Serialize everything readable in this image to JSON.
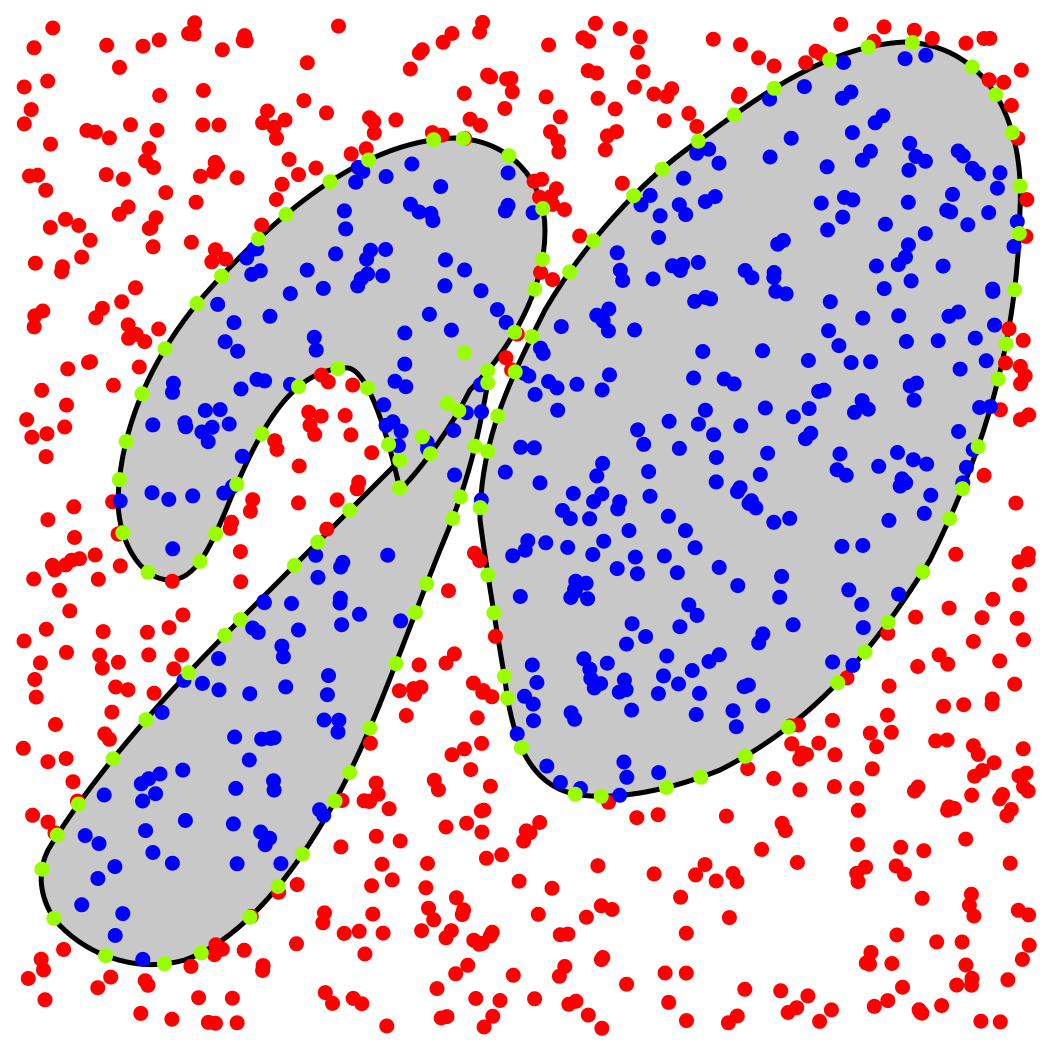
{
  "colors": {
    "background": "#ffffff",
    "region_fill": "#c8c8c8",
    "region_stroke": "#000000",
    "outside_point": "#ff0000",
    "inside_point": "#0000ff",
    "boundary_point": "#99ff00"
  },
  "regions": [
    {
      "name": "left-hook-region",
      "fill_role": "region_fill"
    },
    {
      "name": "middle-arm-region",
      "fill_role": "region_fill"
    },
    {
      "name": "right-blob-region",
      "fill_role": "region_fill"
    }
  ],
  "point_classes": [
    {
      "name": "outside",
      "count": 540,
      "color_role": "outside_point"
    },
    {
      "name": "inside",
      "count": 420,
      "color_role": "inside_point"
    },
    {
      "name": "boundary",
      "count": 104,
      "color_role": "boundary_point"
    }
  ]
}
